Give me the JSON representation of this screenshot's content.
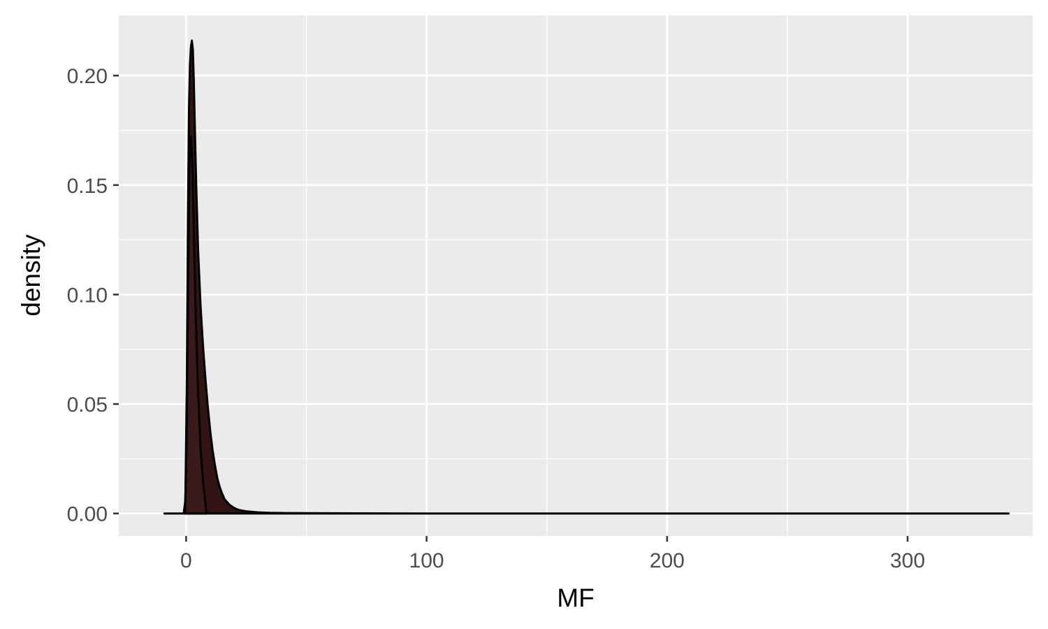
{
  "chart_data": {
    "type": "area",
    "title": "",
    "xlabel": "MF",
    "ylabel": "density",
    "xlim": [
      -28,
      352
    ],
    "ylim": [
      -0.0103,
      0.2275
    ],
    "x_ticks": [
      0,
      100,
      200,
      300
    ],
    "x_tick_labels": [
      "0",
      "100",
      "200",
      "300"
    ],
    "x_minor_ticks": [
      50,
      150,
      250
    ],
    "y_ticks": [
      0.0,
      0.05,
      0.1,
      0.15,
      0.2
    ],
    "y_tick_labels": [
      "0.00",
      "0.05",
      "0.10",
      "0.15",
      "0.20"
    ],
    "y_minor_ticks": [
      0.025,
      0.075,
      0.125,
      0.175
    ],
    "grid": true,
    "legend": "none",
    "series": [
      {
        "fill_color": "#331414",
        "line_color": "#000000",
        "x": [
          -9,
          -1,
          -0.3,
          0.3,
          0.8,
          1.2,
          1.6,
          2.0,
          2.4,
          2.8,
          3.2,
          3.6,
          4.2,
          5,
          6,
          7,
          8,
          9,
          10,
          11,
          12,
          13,
          14,
          15,
          16,
          18,
          20,
          22,
          25,
          30,
          35,
          42,
          60,
          100,
          150,
          200,
          250,
          300,
          342
        ],
        "y": [
          0,
          0,
          0.006,
          0.06,
          0.14,
          0.185,
          0.205,
          0.213,
          0.216,
          0.212,
          0.198,
          0.178,
          0.15,
          0.12,
          0.095,
          0.077,
          0.062,
          0.049,
          0.038,
          0.029,
          0.022,
          0.016,
          0.012,
          0.009,
          0.0065,
          0.004,
          0.0025,
          0.0016,
          0.001,
          0.0005,
          0.0003,
          0.0002,
          0.0001,
          0,
          0,
          0,
          0,
          0,
          0
        ]
      },
      {
        "fill_color": "#3a1a1a",
        "line_color": "#000000",
        "x": [
          -0.5,
          0.2,
          0.8,
          1.4,
          2.0,
          2.6,
          3.2,
          4.0,
          5.0,
          6.0,
          7.0,
          8.5
        ],
        "y": [
          0,
          0.03,
          0.1,
          0.16,
          0.172,
          0.16,
          0.13,
          0.09,
          0.055,
          0.03,
          0.015,
          0
        ]
      }
    ]
  }
}
